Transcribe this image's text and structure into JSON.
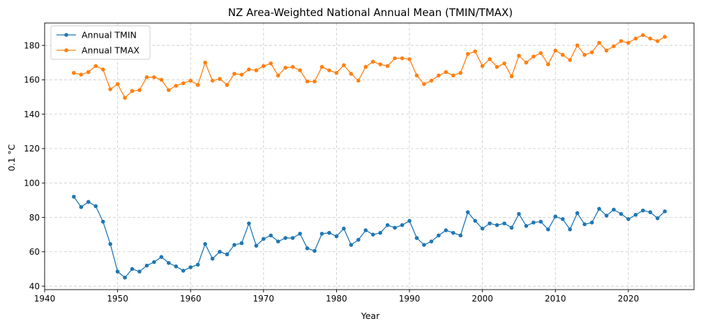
{
  "chart_data": {
    "type": "line",
    "title": "NZ Area-Weighted National Annual Mean (TMIN/TMAX)",
    "xlabel": "Year",
    "ylabel": "0.1 °C",
    "xlim": [
      1940,
      2029
    ],
    "ylim": [
      38,
      193
    ],
    "xticks": [
      1940,
      1950,
      1960,
      1970,
      1980,
      1990,
      2000,
      2010,
      2020
    ],
    "yticks": [
      40,
      60,
      80,
      100,
      120,
      140,
      160,
      180
    ],
    "grid": true,
    "legend_position": "top-left",
    "x": [
      1944,
      1945,
      1946,
      1947,
      1948,
      1949,
      1950,
      1951,
      1952,
      1953,
      1954,
      1955,
      1956,
      1957,
      1958,
      1959,
      1960,
      1961,
      1962,
      1963,
      1964,
      1965,
      1966,
      1967,
      1968,
      1969,
      1970,
      1971,
      1972,
      1973,
      1974,
      1975,
      1976,
      1977,
      1978,
      1979,
      1980,
      1981,
      1982,
      1983,
      1984,
      1985,
      1986,
      1987,
      1988,
      1989,
      1990,
      1991,
      1992,
      1993,
      1994,
      1995,
      1996,
      1997,
      1998,
      1999,
      2000,
      2001,
      2002,
      2003,
      2004,
      2005,
      2006,
      2007,
      2008,
      2009,
      2010,
      2011,
      2012,
      2013,
      2014,
      2015,
      2016,
      2017,
      2018,
      2019,
      2020,
      2021,
      2022,
      2023,
      2024,
      2025
    ],
    "series": [
      {
        "name": "Annual TMIN",
        "color": "#1f77b4",
        "values": [
          92,
          86,
          89,
          86.5,
          77.5,
          64.5,
          48.5,
          45,
          50,
          48.5,
          52,
          54,
          57,
          53.5,
          51.5,
          49,
          51,
          52.5,
          64.5,
          56,
          60,
          58.5,
          64,
          65,
          76.5,
          63.5,
          67.5,
          69.5,
          66,
          68,
          68,
          70.5,
          62,
          60.5,
          70.5,
          71,
          69,
          73.5,
          64,
          67,
          72.5,
          70,
          71,
          75.5,
          74,
          75.5,
          78,
          68,
          64,
          66,
          69.5,
          72.5,
          71,
          69.5,
          83,
          78,
          73.5,
          76.5,
          75.5,
          76.5,
          74,
          82,
          75,
          77,
          77.5,
          73,
          80.5,
          79,
          73,
          82.5,
          76,
          77,
          85,
          81,
          84.5,
          82,
          79,
          81.5,
          84,
          83,
          79.5,
          83.5
        ]
      },
      {
        "name": "Annual TMAX",
        "color": "#ff7f0e",
        "values": [
          164,
          163,
          164.5,
          168,
          166,
          154.5,
          157.5,
          149.5,
          153.5,
          154,
          161.5,
          161.5,
          160,
          154,
          156.5,
          158,
          159.5,
          157,
          170,
          159.5,
          160.5,
          157,
          163.5,
          163,
          166,
          165.5,
          168,
          169.5,
          162.5,
          167,
          167.5,
          165.5,
          159,
          159,
          167.5,
          165.5,
          164,
          168.5,
          163.5,
          159.5,
          167.5,
          170.5,
          169,
          168,
          172.5,
          172.5,
          172,
          162.5,
          157.5,
          159.5,
          162.5,
          164.5,
          162.5,
          164,
          175,
          176.5,
          168,
          172,
          167.5,
          169.5,
          162,
          174,
          170,
          173.5,
          175.5,
          169,
          177,
          174.5,
          171.5,
          180,
          174.5,
          176,
          181.5,
          177,
          179.5,
          182.5,
          181.5,
          184,
          186,
          184,
          182.5,
          185
        ]
      }
    ]
  }
}
